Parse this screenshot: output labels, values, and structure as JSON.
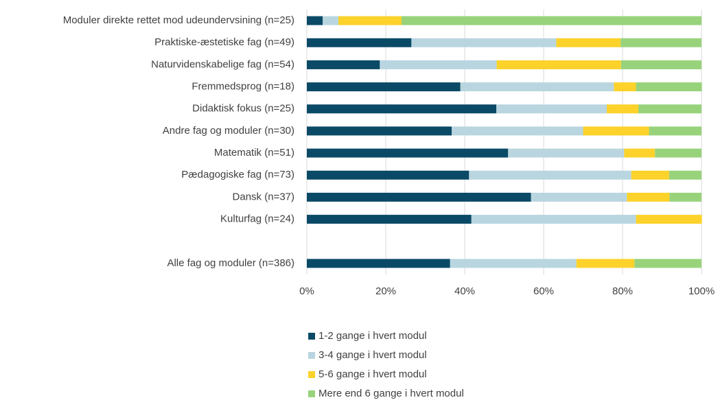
{
  "chart_data": {
    "type": "stacked-barh",
    "categories": [
      "Moduler direkte rettet mod udeundervsining (n=25)",
      "Praktiske-æstetiske fag (n=49)",
      "Naturvidenskabelige fag (n=54)",
      "Fremmedsprog (n=18)",
      "Didaktisk fokus (n=25)",
      "Andre fag og moduler (n=30)",
      "Matematik (n=51)",
      "Pædagogiske fag (n=73)",
      "Dansk (n=37)",
      "Kulturfag (n=24)",
      null,
      "Alle fag og moduler (n=386)"
    ],
    "series": [
      {
        "name": "1-2 gange i hvert modul",
        "color": "#0b4a66",
        "values": [
          4,
          26.5,
          18.5,
          38.9,
          48,
          36.7,
          51,
          41.1,
          56.8,
          41.7,
          null,
          36.3
        ]
      },
      {
        "name": "3-4 gange i hvert modul",
        "color": "#b9d6e0",
        "values": [
          4,
          36.7,
          29.6,
          38.9,
          28,
          33.3,
          29.4,
          41.1,
          24.3,
          41.7,
          null,
          32
        ]
      },
      {
        "name": "5-6 gange i hvert modul",
        "color": "#fcd22b",
        "values": [
          16,
          16.3,
          31.5,
          5.6,
          8,
          16.7,
          7.8,
          9.6,
          10.8,
          16.7,
          null,
          14.7
        ]
      },
      {
        "name": "Mere end 6 gange i hvert modul",
        "color": "#98d37c",
        "values": [
          76,
          20.5,
          20.4,
          16.7,
          16,
          13.3,
          11.8,
          8.2,
          8.1,
          0,
          null,
          17
        ]
      }
    ],
    "xlim": [
      0,
      100
    ],
    "xticks": [
      {
        "value": 0,
        "label": "0%"
      },
      {
        "value": 20,
        "label": "20%"
      },
      {
        "value": 40,
        "label": "40%"
      },
      {
        "value": 60,
        "label": "60%"
      },
      {
        "value": 80,
        "label": "80%"
      },
      {
        "value": 100,
        "label": "100%"
      }
    ],
    "grid": true,
    "legend": "bottom"
  }
}
